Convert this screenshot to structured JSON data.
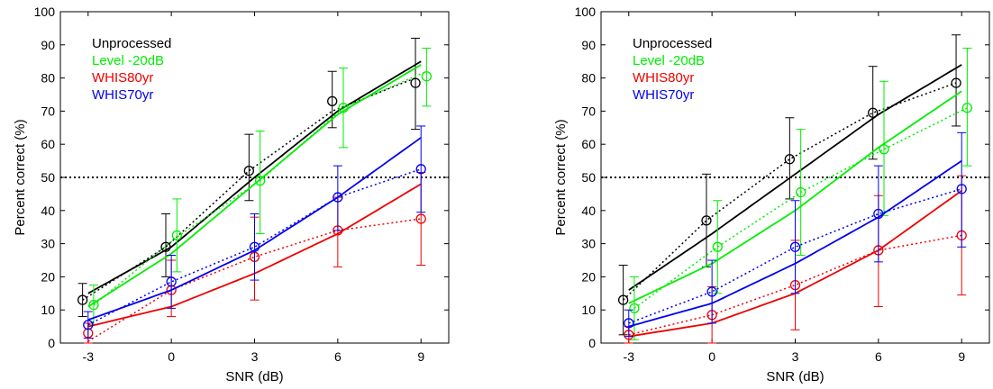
{
  "chart_data": [
    {
      "type": "line",
      "title": "",
      "xlabel": "SNR (dB)",
      "ylabel": "Percent correct (%)",
      "xlim": [
        -4,
        10
      ],
      "ylim": [
        0,
        100
      ],
      "xticks": [
        -3,
        0,
        3,
        6,
        9
      ],
      "yticks": [
        0,
        10,
        20,
        30,
        40,
        50,
        60,
        70,
        80,
        90,
        100
      ],
      "reference_line": {
        "y": 50,
        "style": "dotted"
      },
      "legend": {
        "placement": "top-left",
        "style": "colored-text"
      },
      "x": [
        -3,
        0,
        3,
        6,
        9
      ],
      "series": [
        {
          "name": "Unprocessed",
          "color": "#000000",
          "offset": -0.2,
          "values": [
            13,
            29,
            52,
            73,
            78.5
          ],
          "err_low": [
            5,
            9,
            9,
            8,
            14
          ],
          "err_high": [
            5,
            10,
            11,
            9,
            13.5
          ],
          "fit": [
            15,
            29,
            50,
            70,
            85
          ],
          "trend": [
            13,
            29,
            52,
            70,
            80
          ]
        },
        {
          "name": "Level -20dB",
          "color": "#00ee00",
          "offset": 0.2,
          "values": [
            11.5,
            32.5,
            49,
            71,
            80.5
          ],
          "err_low": [
            6,
            11,
            16,
            12,
            9
          ],
          "err_high": [
            6,
            11,
            15,
            12,
            8.5
          ],
          "fit": [
            11,
            27,
            48,
            69,
            84
          ],
          "trend": [
            11.5,
            32,
            49,
            71,
            82
          ]
        },
        {
          "name": "WHIS80yr",
          "color": "#ee0000",
          "offset": 0,
          "values": [
            3,
            16,
            26,
            34,
            37.5
          ],
          "err_low": [
            3,
            8,
            13,
            11,
            14
          ],
          "err_high": [
            3,
            9,
            12,
            10,
            14
          ],
          "fit": [
            5,
            11,
            21,
            33,
            48
          ],
          "trend": [
            0.5,
            16,
            26,
            34,
            37.5
          ]
        },
        {
          "name": "WHIS70yr",
          "color": "#0000ee",
          "offset": 0,
          "values": [
            5.5,
            18.5,
            29,
            44,
            52.5
          ],
          "err_low": [
            4,
            8,
            10,
            10,
            13
          ],
          "err_high": [
            4,
            8,
            10,
            9.5,
            13
          ],
          "fit": [
            7,
            16,
            28,
            44,
            62
          ],
          "trend": [
            5.5,
            18.5,
            29,
            44,
            52.5
          ]
        }
      ]
    },
    {
      "type": "line",
      "title": "",
      "xlabel": "SNR (dB)",
      "ylabel": "Percent correct (%)",
      "xlim": [
        -4,
        10
      ],
      "ylim": [
        0,
        100
      ],
      "xticks": [
        -3,
        0,
        3,
        6,
        9
      ],
      "yticks": [
        0,
        10,
        20,
        30,
        40,
        50,
        60,
        70,
        80,
        90,
        100
      ],
      "reference_line": {
        "y": 50,
        "style": "dotted"
      },
      "legend": {
        "placement": "top-left",
        "style": "colored-text"
      },
      "x": [
        -3,
        0,
        3,
        6,
        9
      ],
      "series": [
        {
          "name": "Unprocessed",
          "color": "#000000",
          "offset": -0.2,
          "values": [
            13,
            37,
            55.5,
            69.5,
            78.5
          ],
          "err_low": [
            10.5,
            14,
            12,
            14,
            13
          ],
          "err_high": [
            10.5,
            14,
            12.5,
            14,
            14.5
          ],
          "fit": [
            16,
            33,
            51,
            69,
            84
          ],
          "trend": [
            13,
            37,
            55.5,
            69.5,
            78.5
          ]
        },
        {
          "name": "Level -20dB",
          "color": "#00ee00",
          "offset": 0.2,
          "values": [
            10.5,
            29,
            45.5,
            58.5,
            71
          ],
          "err_low": [
            9.5,
            14,
            19,
            20,
            17.5
          ],
          "err_high": [
            9.5,
            14,
            19,
            20.5,
            18
          ],
          "fit": [
            12,
            24,
            40,
            59,
            76
          ],
          "trend": [
            10.5,
            29,
            45.5,
            58.5,
            71
          ]
        },
        {
          "name": "WHIS80yr",
          "color": "#ee0000",
          "offset": 0,
          "values": [
            2.5,
            8.5,
            17.5,
            28,
            32.5
          ],
          "err_low": [
            2.5,
            8.5,
            13.5,
            17,
            18
          ],
          "err_high": [
            2.5,
            8.5,
            13.5,
            16.5,
            18
          ],
          "fit": [
            2,
            6,
            15,
            28,
            46
          ],
          "trend": [
            2.5,
            8.5,
            17.5,
            28,
            32.5
          ]
        },
        {
          "name": "WHIS70yr",
          "color": "#0000ee",
          "offset": 0,
          "values": [
            6,
            15.5,
            29,
            39,
            46.5
          ],
          "err_low": [
            4,
            9.5,
            14,
            14.5,
            17.5
          ],
          "err_high": [
            4,
            9.5,
            14,
            14.5,
            17
          ],
          "fit": [
            5,
            12,
            24,
            38,
            55
          ],
          "trend": [
            6,
            15.5,
            29,
            39,
            46.5
          ]
        }
      ]
    }
  ]
}
